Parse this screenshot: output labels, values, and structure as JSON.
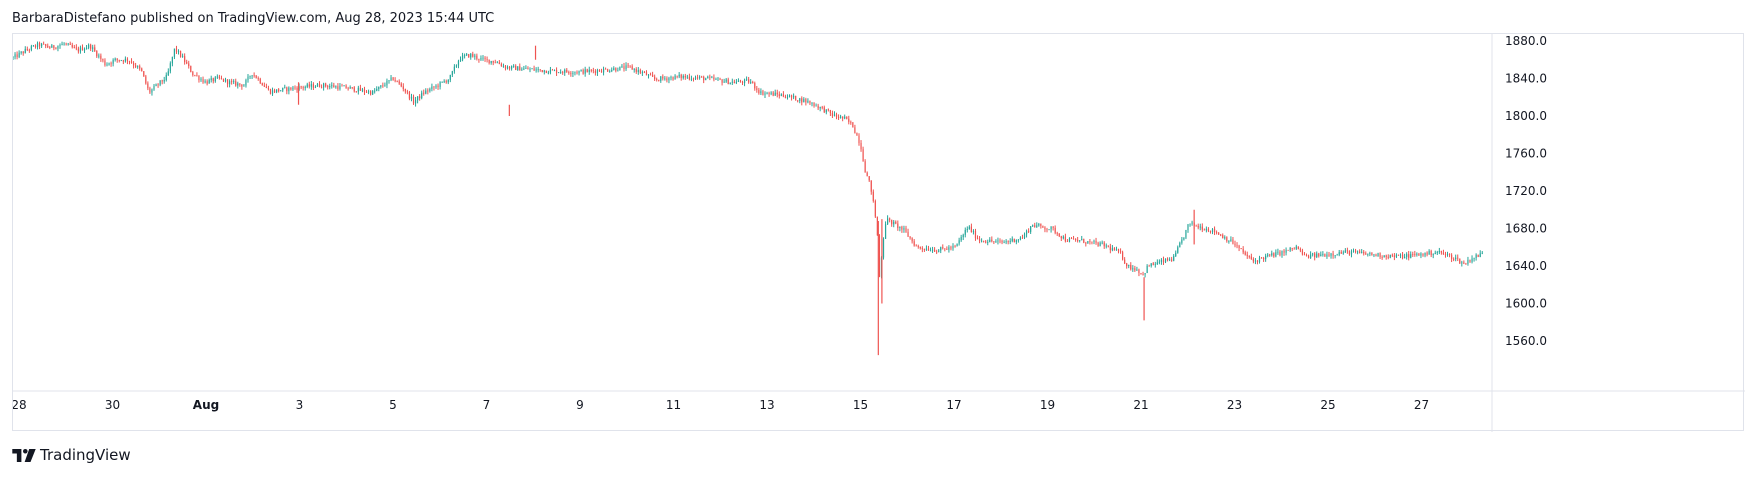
{
  "header": {
    "publisher": "BarbaraDistefano",
    "published_text": "published on TradingView.com, Aug 28, 2023 15:44 UTC"
  },
  "footer": {
    "brand": "TradingView"
  },
  "colors": {
    "up": "#26a69a",
    "down": "#ef5350",
    "axis_text": "#131722",
    "border": "#e0e3eb"
  },
  "chart_data": {
    "type": "candlestick",
    "x_axis": {
      "labels": [
        "28",
        "30",
        "Aug",
        "3",
        "5",
        "7",
        "9",
        "11",
        "13",
        "15",
        "17",
        "19",
        "21",
        "23",
        "25",
        "27"
      ],
      "bold_labels": [
        "Aug"
      ],
      "start": "2023-07-28",
      "end": "2023-08-28 15:44"
    },
    "y_axis": {
      "ticks": [
        1880.0,
        1840.0,
        1800.0,
        1760.0,
        1720.0,
        1680.0,
        1640.0,
        1600.0,
        1560.0
      ],
      "tick_labels": [
        "1880.0",
        "1840.0",
        "1800.0",
        "1760.0",
        "1720.0",
        "1680.0",
        "1640.0",
        "1600.0",
        "1560.0"
      ],
      "range": [
        1540,
        1895
      ],
      "position": "right"
    },
    "grid": false,
    "price_path": [
      [
        0,
        1862
      ],
      [
        0.5,
        1870
      ],
      [
        1,
        1876
      ],
      [
        1.5,
        1873
      ],
      [
        2,
        1877
      ],
      [
        2.5,
        1870
      ],
      [
        3,
        1875
      ],
      [
        3.6,
        1855
      ],
      [
        4,
        1860
      ],
      [
        4.5,
        1860
      ],
      [
        5,
        1848
      ],
      [
        5.3,
        1825
      ],
      [
        5.7,
        1835
      ],
      [
        6,
        1842
      ],
      [
        6.3,
        1872
      ],
      [
        6.6,
        1862
      ],
      [
        7,
        1845
      ],
      [
        7.5,
        1836
      ],
      [
        8,
        1840
      ],
      [
        8.5,
        1835
      ],
      [
        9,
        1833
      ],
      [
        9.3,
        1846
      ],
      [
        9.6,
        1838
      ],
      [
        10,
        1826
      ],
      [
        11,
        1830
      ],
      [
        12,
        1833
      ],
      [
        13,
        1830
      ],
      [
        14,
        1825
      ],
      [
        14.8,
        1840
      ],
      [
        15.2,
        1830
      ],
      [
        15.6,
        1815
      ],
      [
        16,
        1825
      ],
      [
        16.5,
        1832
      ],
      [
        17,
        1840
      ],
      [
        17.4,
        1862
      ],
      [
        17.8,
        1865
      ],
      [
        18.3,
        1860
      ],
      [
        18.8,
        1858
      ],
      [
        19.2,
        1852
      ],
      [
        20,
        1850
      ],
      [
        21,
        1848
      ],
      [
        22,
        1847
      ],
      [
        23,
        1849
      ],
      [
        24,
        1852
      ],
      [
        24.6,
        1845
      ],
      [
        25,
        1839
      ],
      [
        26,
        1842
      ],
      [
        27,
        1840
      ],
      [
        28,
        1836
      ],
      [
        28.7,
        1837
      ],
      [
        29.1,
        1825
      ],
      [
        30,
        1822
      ],
      [
        31,
        1815
      ],
      [
        31.5,
        1808
      ],
      [
        32,
        1800
      ],
      [
        32.4,
        1797
      ],
      [
        32.7,
        1790
      ],
      [
        33,
        1770
      ],
      [
        33.2,
        1740
      ],
      [
        33.4,
        1725
      ],
      [
        33.55,
        1700
      ],
      [
        33.65,
        1680
      ],
      [
        33.75,
        1625
      ],
      [
        33.85,
        1660
      ],
      [
        34,
        1690
      ],
      [
        34.3,
        1685
      ],
      [
        34.7,
        1678
      ],
      [
        35.2,
        1660
      ],
      [
        36,
        1657
      ],
      [
        36.7,
        1660
      ],
      [
        37.2,
        1682
      ],
      [
        37.6,
        1668
      ],
      [
        38.5,
        1665
      ],
      [
        39.3,
        1670
      ],
      [
        39.7,
        1684
      ],
      [
        40.5,
        1679
      ],
      [
        41,
        1668
      ],
      [
        41.6,
        1667
      ],
      [
        42.5,
        1662
      ],
      [
        43.1,
        1654
      ],
      [
        43.4,
        1640
      ],
      [
        43.8,
        1636
      ],
      [
        44,
        1630
      ],
      [
        44.2,
        1640
      ],
      [
        44.8,
        1645
      ],
      [
        45.2,
        1648
      ],
      [
        45.6,
        1672
      ],
      [
        45.8,
        1685
      ],
      [
        46.2,
        1682
      ],
      [
        46.8,
        1677
      ],
      [
        47.5,
        1665
      ],
      [
        48,
        1652
      ],
      [
        48.3,
        1645
      ],
      [
        48.8,
        1650
      ],
      [
        49.5,
        1655
      ],
      [
        50,
        1660
      ],
      [
        50.3,
        1650
      ],
      [
        51,
        1652
      ],
      [
        52,
        1655
      ],
      [
        53,
        1652
      ],
      [
        54,
        1650
      ],
      [
        55,
        1653
      ],
      [
        55.5,
        1655
      ],
      [
        56.2,
        1648
      ],
      [
        56.5,
        1642
      ],
      [
        56.8,
        1648
      ],
      [
        57.2,
        1653
      ]
    ],
    "spikes": [
      {
        "t": 33.7,
        "low": 1545,
        "high": 1688
      },
      {
        "t": 33.84,
        "low": 1600,
        "high": 1690
      },
      {
        "t": 44.05,
        "low": 1582,
        "high": 1628
      },
      {
        "t": 46.0,
        "low": 1663,
        "high": 1700
      },
      {
        "t": 11.12,
        "low": 1812,
        "high": 1836
      },
      {
        "t": 19.33,
        "low": 1800,
        "high": 1812
      },
      {
        "t": 20.35,
        "low": 1860,
        "high": 1875
      }
    ]
  }
}
